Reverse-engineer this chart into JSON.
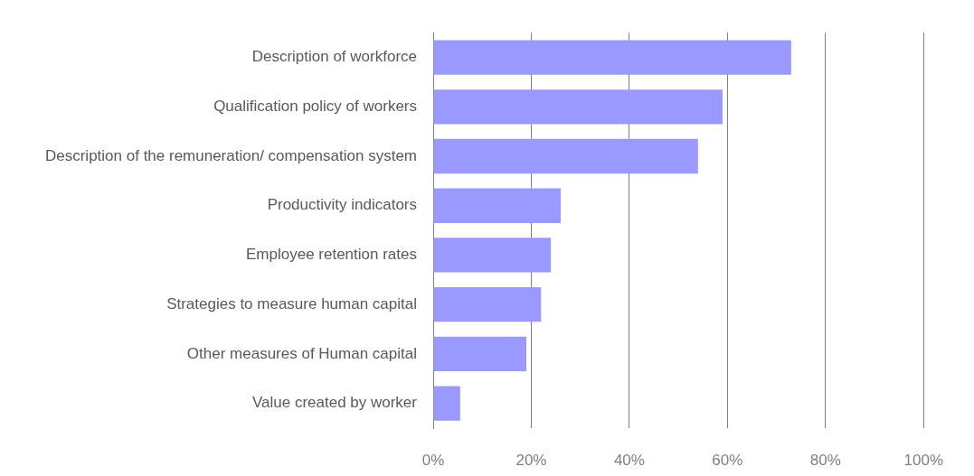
{
  "chart_data": {
    "type": "bar",
    "orientation": "horizontal",
    "categories": [
      "Description of workforce",
      "Qualification policy of workers",
      "Description of the remuneration/ compensation system",
      "Productivity indicators",
      "Employee retention rates",
      "Strategies to measure human capital",
      "Other measures of Human capital",
      "Value created by worker"
    ],
    "values": [
      73,
      59,
      54,
      26,
      24,
      22,
      19,
      5.5
    ],
    "color": "#9999ff",
    "xlim": [
      0,
      100
    ],
    "xticks": [
      {
        "value": 0,
        "label": "0%"
      },
      {
        "value": 20,
        "label": "20%"
      },
      {
        "value": 40,
        "label": "40%"
      },
      {
        "value": 60,
        "label": "60%"
      },
      {
        "value": 80,
        "label": "80%"
      },
      {
        "value": 100,
        "label": "100%"
      }
    ],
    "grid": "x",
    "legend": false
  }
}
